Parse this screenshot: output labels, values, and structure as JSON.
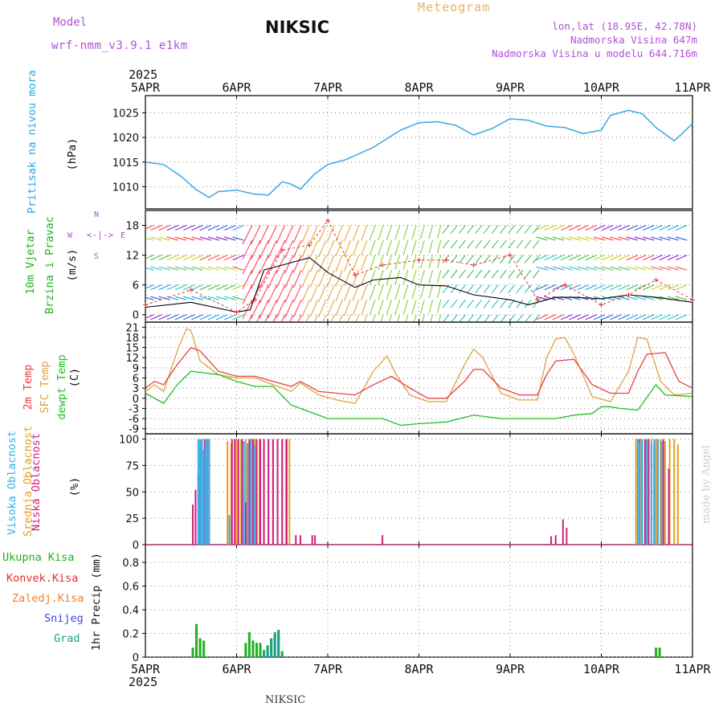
{
  "header": {
    "model_label": "Model",
    "model_version": "wrf-nmm_v3.9.1 e1km",
    "station": "NIKSIC",
    "chart_title": "Meteogram",
    "location": "lon,lat (18.95E, 42.78N)",
    "elevation": "Nadmorska Visina 647m",
    "model_elevation": "Nadmorska Visina u modelu 644.716m"
  },
  "footer": {
    "station": "NIKSIC",
    "credit": "made by Angel"
  },
  "time_axis": {
    "year": "2025",
    "ticks": [
      "5APR",
      "6APR",
      "7APR",
      "8APR",
      "9APR",
      "10APR",
      "11APR"
    ],
    "range_days": [
      0,
      6
    ]
  },
  "colors": {
    "pressure": "#3aa7e0",
    "wind_speed": "#000000",
    "gust": "#e03030",
    "t2m": "#e84040",
    "sfc": "#e0a040",
    "dewpt": "#20c020",
    "high_cloud": "#30b0e8",
    "mid_cloud": "#e0a020",
    "low_cloud": "#d02080",
    "total_precip": "#20b020",
    "convective": "#e03030",
    "frozen": "#f08030",
    "snow": "#4040e0",
    "graupel": "#20a090"
  },
  "panel_labels": {
    "pressure": {
      "name": "Pritisak na nivou mora",
      "unit": "(hPa)"
    },
    "wind": {
      "name1": "10m Vjetar",
      "name2": "Brzina i Pravac",
      "unit": "(m/s)",
      "compass_n": "N",
      "compass_s": "S",
      "compass_w": "W",
      "compass_e": "E"
    },
    "temp": {
      "t2m": "2m Temp",
      "sfc": "SFC Temp",
      "dewpt": "dewpt Temp",
      "unit": "(C)"
    },
    "cloud": {
      "high": "Visoka Oblacnost",
      "mid": "Srednja Oblacnost",
      "low": "Niska Oblacnost",
      "unit": "(%)"
    },
    "precip": {
      "total": "Ukupna Kisa",
      "conv": "Konvek.Kisa",
      "frozen": "Zaledj.Kisa",
      "snow": "Snijeg",
      "graupel": "Grad",
      "unit": "1hr Precip (mm)"
    }
  },
  "chart_data": [
    {
      "type": "line",
      "ylabel": "(hPa)",
      "ylim": [
        1005.5,
        1028.5
      ],
      "yticks": [
        1010,
        1015,
        1020,
        1025
      ],
      "series": [
        {
          "name": "Pritisak na nivou mora",
          "x": [
            0,
            0.2,
            0.4,
            0.55,
            0.7,
            0.8,
            1.0,
            1.2,
            1.35,
            1.5,
            1.6,
            1.7,
            1.85,
            2.0,
            2.2,
            2.5,
            2.8,
            3.0,
            3.2,
            3.4,
            3.6,
            3.8,
            4.0,
            4.2,
            4.4,
            4.6,
            4.8,
            5.0,
            5.1,
            5.3,
            5.45,
            5.6,
            5.8,
            6.0
          ],
          "y": [
            1015.0,
            1014.5,
            1012.0,
            1009.5,
            1007.8,
            1009.0,
            1009.3,
            1008.5,
            1008.3,
            1011.0,
            1010.5,
            1009.5,
            1012.5,
            1014.5,
            1015.5,
            1018.0,
            1021.5,
            1023.0,
            1023.2,
            1022.5,
            1020.5,
            1021.8,
            1023.8,
            1023.5,
            1022.3,
            1022.0,
            1020.8,
            1021.5,
            1024.5,
            1025.5,
            1024.8,
            1022.0,
            1019.3,
            1022.8
          ]
        }
      ]
    },
    {
      "type": "line",
      "ylabel": "(m/s)",
      "ylim": [
        -1.5,
        21
      ],
      "yticks": [
        0,
        6,
        12,
        18
      ],
      "series": [
        {
          "name": "wind speed",
          "x": [
            0,
            0.5,
            1.0,
            1.15,
            1.3,
            1.5,
            1.8,
            2.0,
            2.3,
            2.5,
            2.8,
            3.0,
            3.3,
            3.6,
            4.0,
            4.2,
            4.5,
            4.7,
            5.0,
            5.3,
            5.6,
            6.0
          ],
          "y": [
            1.5,
            2.5,
            0.5,
            1.0,
            9.0,
            10.0,
            11.5,
            8.5,
            5.5,
            7.0,
            7.5,
            6.0,
            5.8,
            4.0,
            3.0,
            2.0,
            3.5,
            3.5,
            3.2,
            4.0,
            3.5,
            2.5
          ]
        },
        {
          "name": "gusts",
          "x": [
            0,
            0.5,
            1.0,
            1.2,
            1.5,
            1.8,
            2.0,
            2.3,
            2.6,
            3.0,
            3.3,
            3.6,
            4.0,
            4.3,
            4.6,
            5.0,
            5.3,
            5.6,
            6.0
          ],
          "y": [
            2.0,
            5.0,
            0.5,
            3.0,
            13.0,
            14.0,
            19.0,
            8.0,
            10.0,
            11.0,
            11.0,
            10.0,
            12.0,
            3.0,
            6.0,
            2.0,
            4.0,
            7.0,
            3.0
          ]
        }
      ]
    },
    {
      "type": "line",
      "ylabel": "(C)",
      "ylim": [
        -10.5,
        22.5
      ],
      "yticks": [
        -9,
        -6,
        -3,
        0,
        3,
        6,
        9,
        12,
        15,
        18,
        21
      ],
      "series": [
        {
          "name": "2m Temp",
          "x": [
            0,
            0.1,
            0.2,
            0.35,
            0.5,
            0.6,
            0.8,
            1.0,
            1.2,
            1.4,
            1.6,
            1.7,
            1.9,
            2.1,
            2.3,
            2.5,
            2.7,
            2.9,
            3.1,
            3.3,
            3.5,
            3.6,
            3.7,
            3.9,
            4.1,
            4.3,
            4.4,
            4.5,
            4.7,
            4.9,
            5.1,
            5.3,
            5.4,
            5.5,
            5.7,
            5.85,
            6.0
          ],
          "y": [
            3,
            5,
            4,
            10,
            15,
            14,
            8,
            6.5,
            6.5,
            5,
            3.5,
            5,
            2,
            1.5,
            1,
            4,
            6.5,
            3,
            0,
            0,
            5,
            8.5,
            8.5,
            3,
            1,
            1,
            7,
            11,
            11.5,
            4,
            1.5,
            1.5,
            8,
            13,
            13.5,
            5,
            3
          ]
        },
        {
          "name": "SFC Temp",
          "x": [
            0,
            0.1,
            0.2,
            0.35,
            0.45,
            0.5,
            0.6,
            0.8,
            1.0,
            1.2,
            1.4,
            1.6,
            1.7,
            1.9,
            2.1,
            2.3,
            2.5,
            2.65,
            2.75,
            2.9,
            3.1,
            3.3,
            3.5,
            3.6,
            3.7,
            3.9,
            4.1,
            4.3,
            4.4,
            4.5,
            4.6,
            4.7,
            4.9,
            5.1,
            5.3,
            5.4,
            5.5,
            5.65,
            5.8,
            6.0
          ],
          "y": [
            2,
            4,
            2,
            14,
            20.5,
            20,
            11,
            7,
            6,
            6,
            4,
            2,
            4.5,
            1,
            -0.5,
            -1.5,
            8,
            12.5,
            7,
            1,
            -1,
            -1,
            10,
            14.5,
            12,
            1.5,
            -0.5,
            -0.5,
            12,
            17.5,
            18,
            13,
            0.5,
            -1,
            8,
            18,
            17.5,
            5,
            1,
            1.5
          ]
        },
        {
          "name": "dewpt Temp",
          "x": [
            0,
            0.2,
            0.35,
            0.5,
            0.8,
            1.0,
            1.2,
            1.4,
            1.6,
            1.8,
            2.0,
            2.3,
            2.6,
            2.8,
            3.0,
            3.3,
            3.6,
            3.9,
            4.0,
            4.2,
            4.5,
            4.7,
            4.9,
            5.0,
            5.1,
            5.2,
            5.4,
            5.6,
            5.7,
            6.0
          ],
          "y": [
            1.5,
            -1.5,
            4,
            8,
            7,
            5,
            3.5,
            3.5,
            -2,
            -4,
            -6,
            -6,
            -6,
            -8,
            -7.5,
            -7,
            -5,
            -6,
            -6,
            -6,
            -6,
            -5,
            -4.5,
            -2.5,
            -2.5,
            -3.0,
            -3.5,
            4,
            1,
            0.5
          ]
        }
      ]
    },
    {
      "type": "bar",
      "ylabel": "(%)",
      "ylim": [
        0,
        105
      ],
      "yticks": [
        0,
        25,
        50,
        75,
        100
      ],
      "series": [
        {
          "name": "Visoka Oblacnost",
          "x": [
            0.58,
            0.6,
            0.62,
            0.64,
            0.66,
            0.68,
            0.7,
            0.92,
            1.08,
            1.12,
            1.16,
            1.2,
            5.4,
            5.42,
            5.45,
            5.5,
            5.55,
            5.58,
            5.62,
            5.66
          ],
          "values": [
            100,
            98,
            100,
            90,
            100,
            100,
            100,
            28,
            98,
            96,
            100,
            94,
            100,
            98,
            100,
            100,
            96,
            100,
            100,
            98
          ]
        },
        {
          "name": "Srednja Oblacnost",
          "x": [
            0.6,
            0.65,
            0.68,
            0.9,
            0.94,
            1.0,
            1.05,
            1.1,
            1.14,
            1.2,
            1.25,
            1.3,
            1.35,
            1.4,
            1.45,
            1.5,
            1.54,
            1.58,
            5.38,
            5.44,
            5.5,
            5.55,
            5.6,
            5.65,
            5.7,
            5.75,
            5.8,
            5.84
          ],
          "values": [
            100,
            100,
            100,
            98,
            96,
            100,
            100,
            100,
            100,
            100,
            100,
            100,
            100,
            100,
            100,
            100,
            100,
            100,
            100,
            100,
            100,
            100,
            100,
            100,
            98,
            100,
            100,
            95
          ]
        },
        {
          "name": "Niska Oblacnost",
          "x": [
            0.52,
            0.55,
            0.58,
            0.6,
            0.62,
            0.65,
            0.68,
            0.7,
            0.95,
            0.98,
            1.02,
            1.06,
            1.1,
            1.14,
            1.18,
            1.22,
            1.26,
            1.3,
            1.35,
            1.4,
            1.45,
            1.5,
            1.55,
            1.65,
            1.7,
            1.83,
            1.86,
            2.6,
            4.45,
            4.5,
            4.58,
            4.62,
            5.42,
            5.48,
            5.52,
            5.58,
            5.62,
            5.68,
            5.74
          ],
          "values": [
            38,
            52,
            66,
            98,
            100,
            100,
            100,
            100,
            100,
            100,
            100,
            100,
            40,
            100,
            100,
            100,
            100,
            100,
            100,
            100,
            100,
            100,
            100,
            9,
            9,
            9,
            9,
            9,
            8,
            9,
            24,
            16,
            100,
            100,
            100,
            94,
            100,
            100,
            72
          ]
        }
      ]
    },
    {
      "type": "bar",
      "ylabel": "1hr Precip (mm)",
      "ylim": [
        0,
        0.95
      ],
      "yticks": [
        0,
        0.2,
        0.4,
        0.6,
        0.8
      ],
      "series": [
        {
          "name": "Ukupna Kisa",
          "x": [
            0.52,
            0.56,
            0.6,
            0.64,
            1.1,
            1.14,
            1.18,
            1.22,
            1.26,
            1.3,
            1.34,
            1.38,
            1.42,
            1.46,
            1.5,
            5.6,
            5.64
          ],
          "values": [
            0.08,
            0.28,
            0.16,
            0.14,
            0.12,
            0.21,
            0.14,
            0.12,
            0.12,
            0.06,
            0.1,
            0.16,
            0.21,
            0.23,
            0.05,
            0.08,
            0.08
          ]
        },
        {
          "name": "Grad",
          "x": [
            1.3,
            1.34,
            1.38,
            1.42,
            1.46
          ],
          "values": [
            0.05,
            0.08,
            0.15,
            0.2,
            0.23
          ]
        }
      ]
    }
  ]
}
